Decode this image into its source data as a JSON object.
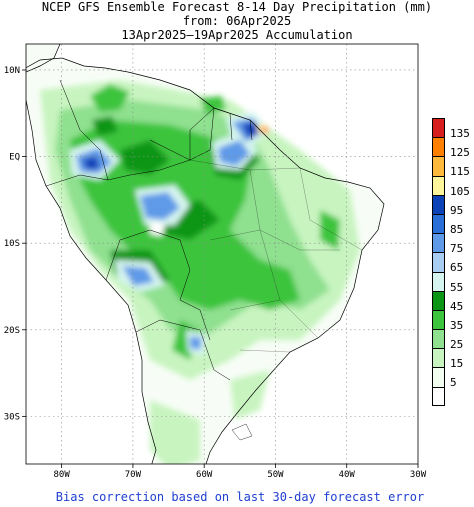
{
  "title": {
    "line1": "NCEP GFS Ensemble Forecast 8-14 Day Precipitation (mm)",
    "line2": "from: 06Apr2025",
    "line3": "13Apr2025–19Apr2025 Accumulation"
  },
  "axes": {
    "lat_labels": [
      {
        "text": "10N",
        "lat": 10
      },
      {
        "text": "EQ",
        "lat": 0
      },
      {
        "text": "10S",
        "lat": -10
      },
      {
        "text": "20S",
        "lat": -20
      },
      {
        "text": "30S",
        "lat": -30
      }
    ],
    "lon_labels": [
      {
        "text": "80W",
        "lon": -80
      },
      {
        "text": "70W",
        "lon": -70
      },
      {
        "text": "60W",
        "lon": -60
      },
      {
        "text": "50W",
        "lon": -50
      },
      {
        "text": "40W",
        "lon": -40
      },
      {
        "text": "30W",
        "lon": -30
      }
    ],
    "lon_range": [
      -85,
      -30
    ],
    "lat_range": [
      -35.5,
      13
    ]
  },
  "legend": {
    "entries": [
      {
        "label": "135",
        "color": "#d61e1e"
      },
      {
        "label": "125",
        "color": "#ff7f00"
      },
      {
        "label": "115",
        "color": "#ffb93c"
      },
      {
        "label": "105",
        "color": "#fff59a"
      },
      {
        "label": "95",
        "color": "#0b42b8"
      },
      {
        "label": "85",
        "color": "#2a6ed8"
      },
      {
        "label": "75",
        "color": "#5f9ae8"
      },
      {
        "label": "65",
        "color": "#a9ccf3"
      },
      {
        "label": "55",
        "color": "#d6f5f0"
      },
      {
        "label": "45",
        "color": "#0a9614"
      },
      {
        "label": "35",
        "color": "#3cc43c"
      },
      {
        "label": "25",
        "color": "#8fe08f"
      },
      {
        "label": "15",
        "color": "#c8f4c0"
      },
      {
        "label": "5",
        "color": "#f2fff0"
      },
      {
        "label": "",
        "color": "#ffffff"
      }
    ]
  },
  "footer": {
    "note": "Bias correction based on last 30-day forecast error"
  }
}
